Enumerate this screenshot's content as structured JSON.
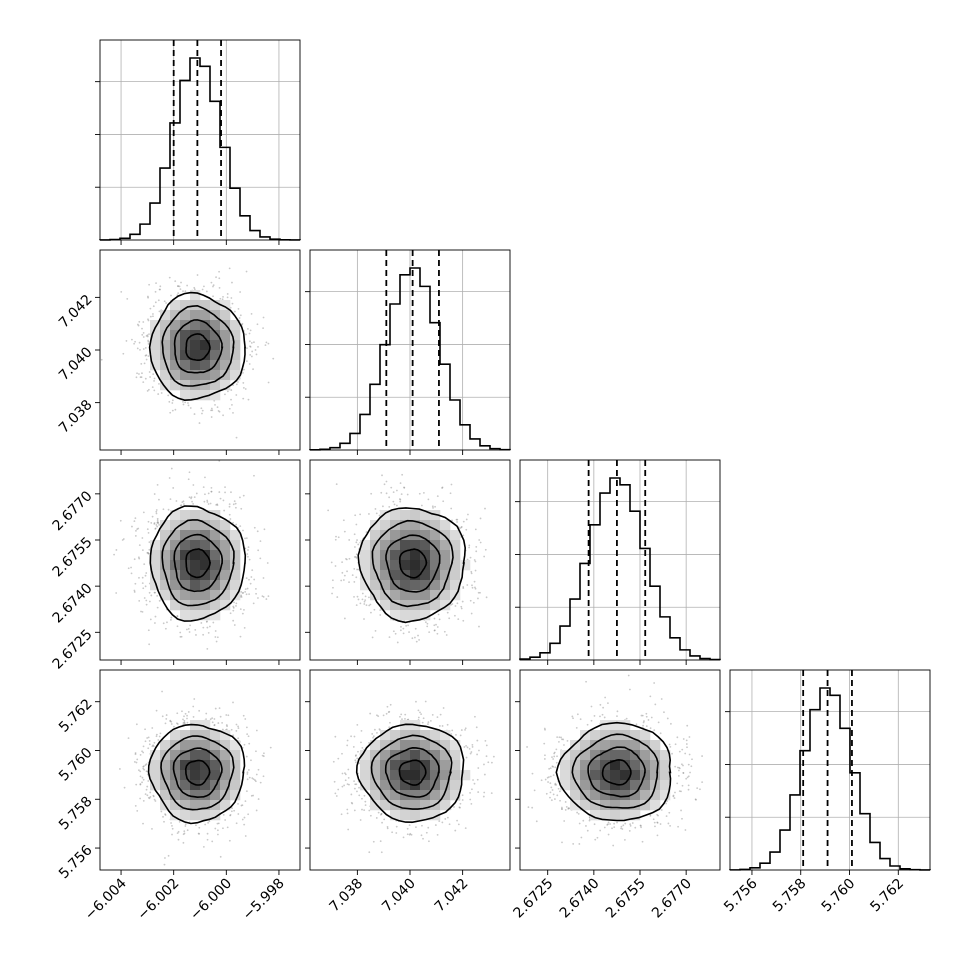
{
  "chart_data": {
    "type": "corner",
    "parameters": [
      {
        "range": [
          -6.0048,
          -5.9972
        ],
        "mean": -6.0011,
        "sigma": 0.0009,
        "quantiles": [
          -6.002,
          -6.0011,
          -6.0002
        ],
        "ticks": [
          -6.004,
          -6.002,
          -6.0,
          -5.998
        ],
        "tick_labels": [
          "−6.004",
          "−6.002",
          "−6.000",
          "−5.998"
        ]
      },
      {
        "range": [
          7.0362,
          7.0438
        ],
        "mean": 7.0401,
        "sigma": 0.001,
        "quantiles": [
          7.0391,
          7.0401,
          7.0411
        ],
        "ticks": [
          7.038,
          7.04,
          7.042
        ],
        "tick_labels": [
          "7.038",
          "7.040",
          "7.042"
        ]
      },
      {
        "range": [
          2.6716,
          2.6781
        ],
        "mean": 2.67475,
        "sigma": 0.00092,
        "quantiles": [
          2.67383,
          2.67475,
          2.67567
        ],
        "ticks": [
          2.6725,
          2.674,
          2.6755,
          2.677
        ],
        "tick_labels": [
          "2.6725",
          "2.6740",
          "2.6755",
          "2.6770"
        ]
      },
      {
        "range": [
          5.7551,
          5.7633
        ],
        "mean": 5.7591,
        "sigma": 0.001,
        "quantiles": [
          5.7581,
          5.7591,
          5.7601
        ],
        "ticks": [
          5.756,
          5.758,
          5.76,
          5.762
        ],
        "tick_labels": [
          "5.756",
          "5.758",
          "5.760",
          "5.762"
        ]
      }
    ],
    "histogram_bins": 20,
    "density_bins": 20,
    "contour_levels_sigma": [
      0.5,
      1.0,
      1.5,
      2.0
    ],
    "scatter_points_per_panel": 1800,
    "grid": true,
    "legend": "none",
    "title": "",
    "colors": {
      "line": "#000000",
      "grid": "#b0b0b0",
      "scatter": "#888888"
    }
  }
}
